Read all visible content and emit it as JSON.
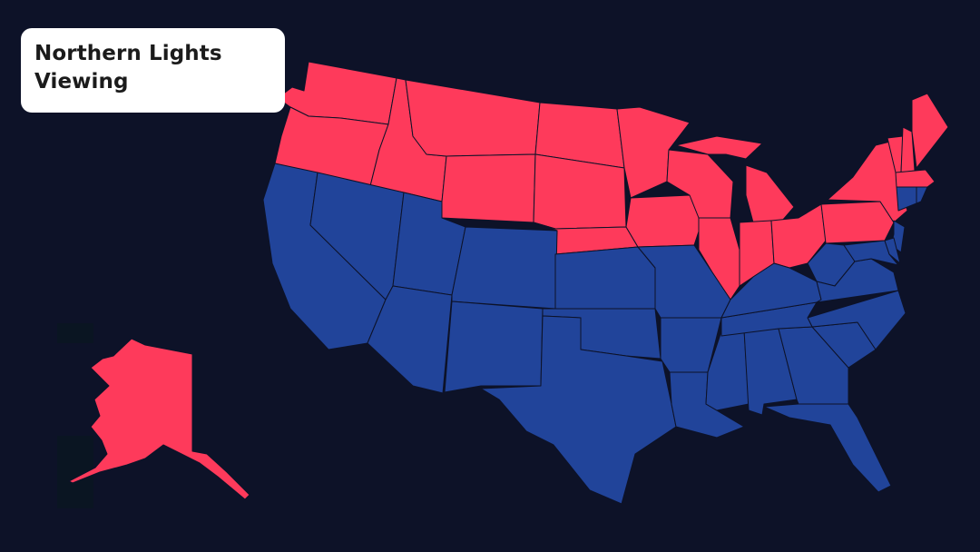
{
  "title": "Northern Lights Viewing",
  "colors": {
    "background": "#0d1228",
    "viewing": "#fe3a5b",
    "not_viewing": "#21449a",
    "border": "#0d1228"
  },
  "regions": {
    "viewing": [
      "AK",
      "WA",
      "OR",
      "ID",
      "MT",
      "WY",
      "ND",
      "SD",
      "NE",
      "MN",
      "IA",
      "WI",
      "MI",
      "IL",
      "IN",
      "OH",
      "PA",
      "NY",
      "VT",
      "NH",
      "ME",
      "MA"
    ],
    "not_viewing": [
      "CA",
      "NV",
      "UT",
      "AZ",
      "CO",
      "NM",
      "KS",
      "OK",
      "TX",
      "MO",
      "AR",
      "LA",
      "MS",
      "AL",
      "GA",
      "FL",
      "SC",
      "NC",
      "TN",
      "KY",
      "WV",
      "VA",
      "MD",
      "DE",
      "NJ",
      "CT",
      "RI"
    ]
  }
}
